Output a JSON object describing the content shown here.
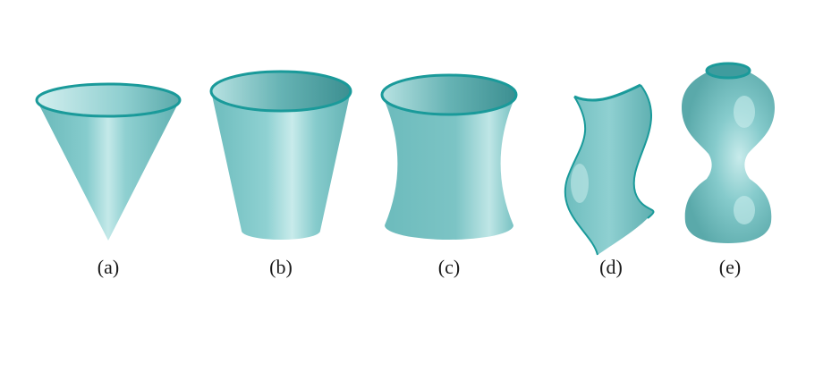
{
  "figure": {
    "surfaces": [
      {
        "label": "(a)",
        "shape": "cone-icon"
      },
      {
        "label": "(b)",
        "shape": "truncated-cone-icon"
      },
      {
        "label": "(c)",
        "shape": "hyperboloid-icon"
      },
      {
        "label": "(d)",
        "shape": "wavy-sheet-icon"
      },
      {
        "label": "(e)",
        "shape": "vase-icon"
      }
    ],
    "colors": {
      "surface": "#79c6c7",
      "surface_dark": "#3f9c9e",
      "surface_light": "#c9ecec",
      "rim": "#1a9a9a"
    }
  }
}
